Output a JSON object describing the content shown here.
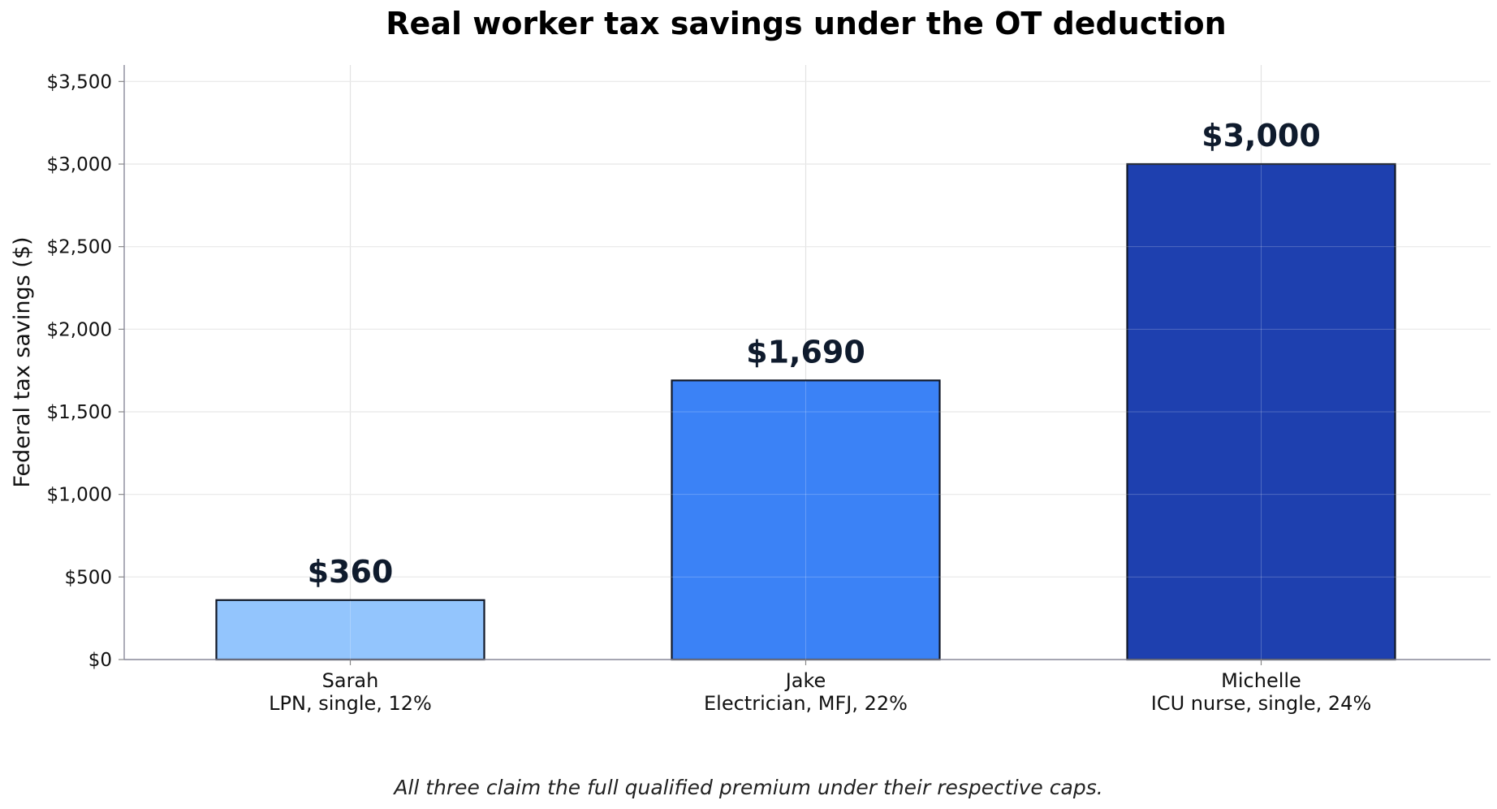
{
  "chart_data": {
    "type": "bar",
    "title": "Real worker tax savings under the OT deduction",
    "ylabel": "Federal tax savings ($)",
    "xlabel": "",
    "ylim": [
      0,
      3600
    ],
    "yticks": [
      0,
      500,
      1000,
      1500,
      2000,
      2500,
      3000,
      3500
    ],
    "ytick_labels": [
      "$0",
      "$500",
      "$1,000",
      "$1,500",
      "$2,000",
      "$2,500",
      "$3,000",
      "$3,500"
    ],
    "categories": [
      {
        "name": "Sarah",
        "detail": "LPN, single, 12%"
      },
      {
        "name": "Jake",
        "detail": "Electrician, MFJ, 22%"
      },
      {
        "name": "Michelle",
        "detail": "ICU nurse, single, 24%"
      }
    ],
    "values": [
      360,
      1690,
      3000
    ],
    "value_labels": [
      "$360",
      "$1,690",
      "$3,000"
    ],
    "colors": [
      "#93c5fd",
      "#3b82f6",
      "#1e40af"
    ],
    "grid": true,
    "caption": "All three claim the full qualified premium under their respective caps."
  }
}
